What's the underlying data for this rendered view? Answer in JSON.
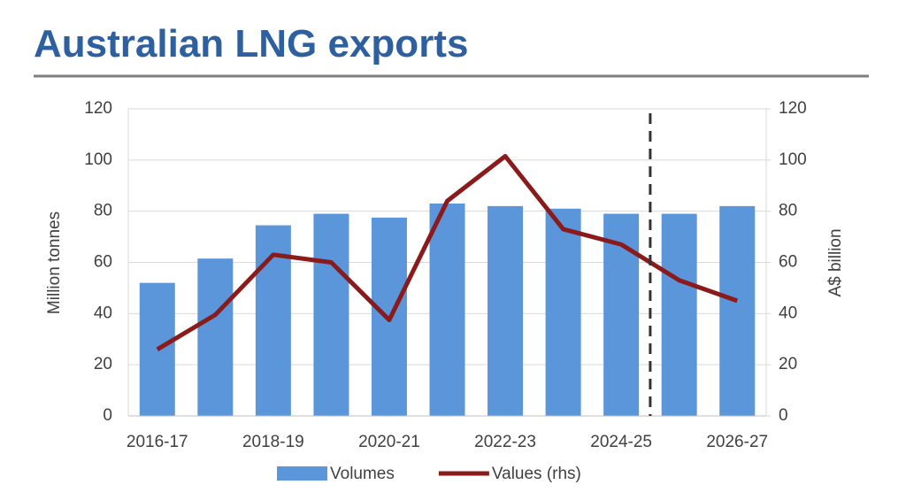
{
  "chart_data": {
    "type": "combo",
    "title": "Australian LNG exports",
    "categories": [
      "2016-17",
      null,
      "2018-19",
      null,
      "2020-21",
      null,
      "2022-23",
      null,
      "2024-25",
      null,
      "2026-27"
    ],
    "series": [
      {
        "name": "Volumes",
        "type": "bar",
        "color": "#5b96db",
        "axis": "y",
        "values": [
          52,
          61.5,
          74.5,
          79,
          77.5,
          83,
          82,
          81,
          79,
          79,
          82
        ]
      },
      {
        "name": "Values (rhs)",
        "type": "line",
        "color": "#8b1a1a",
        "axis": "y2",
        "values": [
          26,
          39.5,
          63,
          60,
          37.5,
          84,
          101.5,
          73,
          67,
          53,
          45
        ]
      }
    ],
    "y_label": "Million tonnes",
    "y2_label": "A$ billion",
    "ylim": [
      0,
      120
    ],
    "yticks": [
      0,
      20,
      40,
      60,
      80,
      100,
      120
    ],
    "y2lim": [
      0,
      120
    ],
    "y2ticks": [
      0,
      20,
      40,
      60,
      80,
      100,
      120
    ],
    "grid": true,
    "legend": "bottom"
  }
}
